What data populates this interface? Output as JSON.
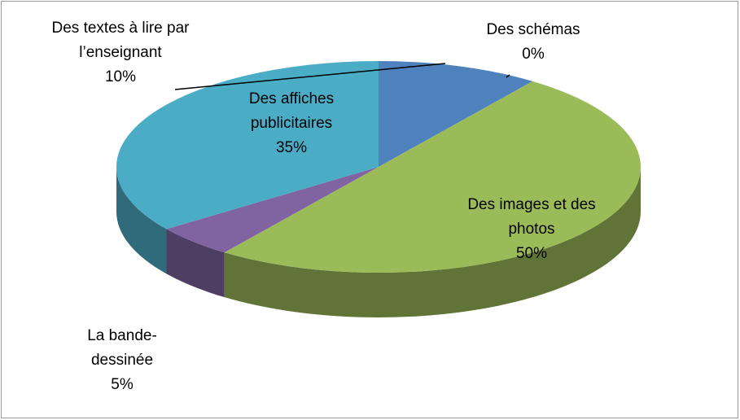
{
  "chart_data": {
    "type": "pie",
    "categories": [
      "Des textes à lire par l’enseignant",
      "Des schémas",
      "Des images et des photos",
      "La bande-dessinée",
      "Des affiches publicitaires"
    ],
    "values": [
      10,
      0,
      50,
      5,
      35
    ],
    "value_labels": [
      "10%",
      "0%",
      "50%",
      "5%",
      "35%"
    ],
    "colors": [
      "#4f81bd",
      "#4f81bd",
      "#9bbb59",
      "#8064a2",
      "#4bacc6"
    ]
  }
}
